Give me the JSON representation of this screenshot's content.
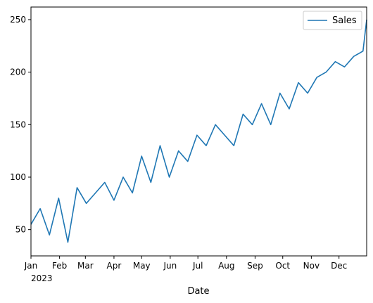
{
  "chart_data": {
    "type": "line",
    "xlabel": "Date",
    "ylabel": "",
    "xlim": [
      "2023-01-01",
      "2023-12-31"
    ],
    "ylim": [
      25,
      262
    ],
    "grid": false,
    "legend": "top-right",
    "x_ticks": [
      {
        "date": "2023-01-01",
        "label": "Jan",
        "sub": "2023"
      },
      {
        "date": "2023-02-01",
        "label": "Feb",
        "sub": ""
      },
      {
        "date": "2023-03-01",
        "label": "Mar",
        "sub": ""
      },
      {
        "date": "2023-04-01",
        "label": "Apr",
        "sub": ""
      },
      {
        "date": "2023-05-01",
        "label": "May",
        "sub": ""
      },
      {
        "date": "2023-06-01",
        "label": "Jun",
        "sub": ""
      },
      {
        "date": "2023-07-01",
        "label": "Jul",
        "sub": ""
      },
      {
        "date": "2023-08-01",
        "label": "Aug",
        "sub": ""
      },
      {
        "date": "2023-09-01",
        "label": "Sep",
        "sub": ""
      },
      {
        "date": "2023-10-01",
        "label": "Oct",
        "sub": ""
      },
      {
        "date": "2023-11-01",
        "label": "Nov",
        "sub": ""
      },
      {
        "date": "2023-12-01",
        "label": "Dec",
        "sub": ""
      }
    ],
    "y_ticks": [
      50,
      100,
      150,
      200,
      250
    ],
    "series": [
      {
        "name": "Sales",
        "color": "#1f77b4",
        "x": [
          "2023-01-01",
          "2023-01-11",
          "2023-01-21",
          "2023-01-31",
          "2023-02-10",
          "2023-02-20",
          "2023-03-02",
          "2023-03-12",
          "2023-03-22",
          "2023-04-01",
          "2023-04-11",
          "2023-04-21",
          "2023-05-01",
          "2023-05-11",
          "2023-05-21",
          "2023-05-31",
          "2023-06-10",
          "2023-06-20",
          "2023-06-30",
          "2023-07-10",
          "2023-07-20",
          "2023-07-30",
          "2023-08-09",
          "2023-08-19",
          "2023-08-29",
          "2023-09-08",
          "2023-09-18",
          "2023-09-28",
          "2023-10-08",
          "2023-10-18",
          "2023-10-28",
          "2023-11-07",
          "2023-11-17",
          "2023-11-27",
          "2023-12-07",
          "2023-12-17",
          "2023-12-27",
          "2023-12-31"
        ],
        "values": [
          55,
          70,
          45,
          80,
          38,
          90,
          75,
          85,
          95,
          78,
          100,
          85,
          120,
          95,
          130,
          100,
          125,
          115,
          140,
          130,
          150,
          140,
          130,
          160,
          150,
          170,
          150,
          180,
          165,
          190,
          180,
          195,
          200,
          210,
          205,
          215,
          220,
          250
        ]
      }
    ]
  }
}
